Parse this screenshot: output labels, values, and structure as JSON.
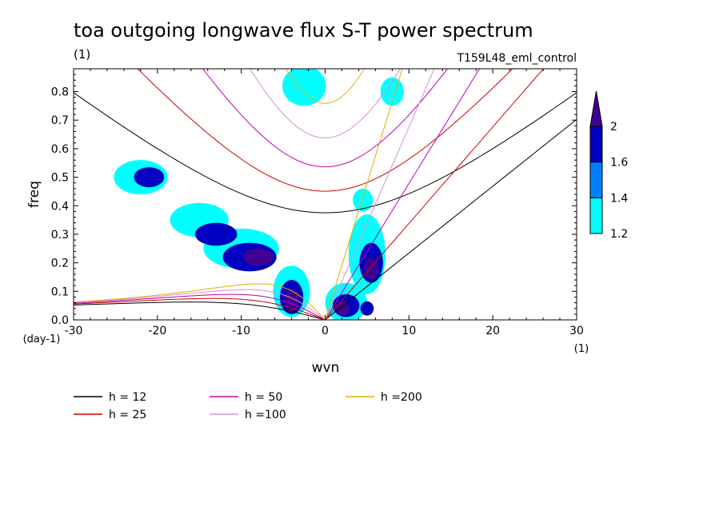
{
  "chart_data": {
    "type": "heatmap",
    "title": "toa outgoing longwave flux S-T power spectrum",
    "units_label": "(1)",
    "experiment_label": "T159L48_eml_control",
    "xlabel": "wvn",
    "x_units": "(1)",
    "ylabel": "freq",
    "y_units": "(day-1)",
    "xlim": [
      -30,
      30
    ],
    "ylim": [
      0,
      0.88
    ],
    "x_ticks": [
      -30,
      -20,
      -10,
      0,
      10,
      20,
      30
    ],
    "x_tick_labels": [
      "-30",
      "-20",
      "-10",
      "0",
      "10",
      "20",
      "30"
    ],
    "y_ticks": [
      0,
      0.1,
      0.2,
      0.3,
      0.4,
      0.5,
      0.6,
      0.7,
      0.8
    ],
    "y_tick_labels": [
      "0.0",
      "0.1",
      "0.2",
      "0.3",
      "0.4",
      "0.5",
      "0.6",
      "0.7",
      "0.8"
    ],
    "colorbar": {
      "levels": [
        1.2,
        1.4,
        1.6,
        2
      ],
      "level_labels": [
        "1.2",
        "1.4",
        "1.6",
        "2"
      ],
      "colors": [
        "#00ffff",
        "#0080ff",
        "#0000c0",
        "#400090"
      ]
    },
    "contour_regions": [
      {
        "level": 1.2,
        "x": -22,
        "y": 0.5,
        "rx": 3.2,
        "ry": 0.06
      },
      {
        "level": 1.2,
        "x": -15,
        "y": 0.35,
        "rx": 3.5,
        "ry": 0.06
      },
      {
        "level": 1.2,
        "x": -10,
        "y": 0.25,
        "rx": 4.5,
        "ry": 0.07
      },
      {
        "level": 1.2,
        "x": -4,
        "y": 0.1,
        "rx": 2.2,
        "ry": 0.09
      },
      {
        "level": 1.2,
        "x": 2.5,
        "y": 0.06,
        "rx": 2.5,
        "ry": 0.07
      },
      {
        "level": 1.2,
        "x": 5,
        "y": 0.23,
        "rx": 2.2,
        "ry": 0.14
      },
      {
        "level": 1.2,
        "x": -2.5,
        "y": 0.82,
        "rx": 2.6,
        "ry": 0.07
      },
      {
        "level": 1.2,
        "x": 4.5,
        "y": 0.42,
        "rx": 1.2,
        "ry": 0.04
      },
      {
        "level": 1.2,
        "x": 8,
        "y": 0.8,
        "rx": 1.4,
        "ry": 0.05
      },
      {
        "level": 1.6,
        "x": -21,
        "y": 0.5,
        "rx": 1.8,
        "ry": 0.035
      },
      {
        "level": 1.6,
        "x": -13,
        "y": 0.3,
        "rx": 2.5,
        "ry": 0.04
      },
      {
        "level": 1.6,
        "x": -9,
        "y": 0.22,
        "rx": 3.2,
        "ry": 0.05
      },
      {
        "level": 1.6,
        "x": -4,
        "y": 0.08,
        "rx": 1.4,
        "ry": 0.06
      },
      {
        "level": 1.6,
        "x": 2.5,
        "y": 0.05,
        "rx": 1.6,
        "ry": 0.04
      },
      {
        "level": 1.6,
        "x": 5.5,
        "y": 0.2,
        "rx": 1.4,
        "ry": 0.07
      },
      {
        "level": 1.6,
        "x": 5,
        "y": 0.04,
        "rx": 0.8,
        "ry": 0.025
      },
      {
        "level": 2,
        "x": -8,
        "y": 0.22,
        "rx": 1.8,
        "ry": 0.03
      },
      {
        "level": 2,
        "x": -4,
        "y": 0.07,
        "rx": 0.9,
        "ry": 0.04
      },
      {
        "level": 2,
        "x": 2,
        "y": 0.04,
        "rx": 0.9,
        "ry": 0.025
      },
      {
        "level": 2,
        "x": 5.5,
        "y": 0.18,
        "rx": 0.8,
        "ry": 0.04
      }
    ],
    "dispersion_curves": [
      {
        "label": "h = 12",
        "equivalent_depth": 12,
        "color": "#000000"
      },
      {
        "label": "h = 25",
        "equivalent_depth": 25,
        "color": "#d00000"
      },
      {
        "label": "h = 50",
        "equivalent_depth": 50,
        "color": "#c000b0"
      },
      {
        "label": "h =100",
        "equivalent_depth": 100,
        "color": "#d890d8"
      },
      {
        "label": "h =200",
        "equivalent_depth": 200,
        "color": "#e0b000"
      }
    ]
  }
}
